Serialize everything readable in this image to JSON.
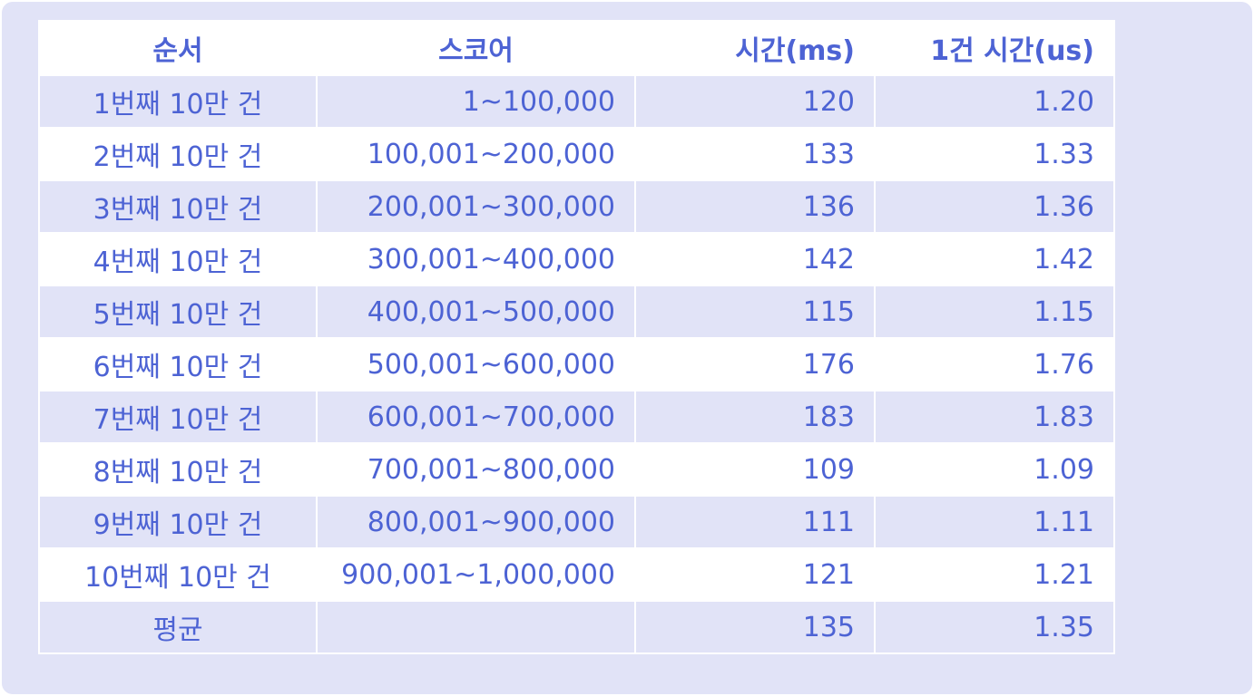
{
  "table": {
    "headers": {
      "order": "순서",
      "score": "스코어",
      "time_ms": "시간(ms)",
      "per_item_us": "1건 시간(us)"
    },
    "rows": [
      {
        "order": "1번째 10만 건",
        "score": "1~100,000",
        "time_ms": "120",
        "per_item_us": "1.20"
      },
      {
        "order": "2번째 10만 건",
        "score": "100,001~200,000",
        "time_ms": "133",
        "per_item_us": "1.33"
      },
      {
        "order": "3번째 10만 건",
        "score": "200,001~300,000",
        "time_ms": "136",
        "per_item_us": "1.36"
      },
      {
        "order": "4번째 10만 건",
        "score": "300,001~400,000",
        "time_ms": "142",
        "per_item_us": "1.42"
      },
      {
        "order": "5번째 10만 건",
        "score": "400,001~500,000",
        "time_ms": "115",
        "per_item_us": "1.15"
      },
      {
        "order": "6번째 10만 건",
        "score": "500,001~600,000",
        "time_ms": "176",
        "per_item_us": "1.76"
      },
      {
        "order": "7번째 10만 건",
        "score": "600,001~700,000",
        "time_ms": "183",
        "per_item_us": "1.83"
      },
      {
        "order": "8번째 10만 건",
        "score": "700,001~800,000",
        "time_ms": "109",
        "per_item_us": "1.09"
      },
      {
        "order": "9번째 10만 건",
        "score": "800,001~900,000",
        "time_ms": "111",
        "per_item_us": "1.11"
      },
      {
        "order": "10번째 10만 건",
        "score": "900,001~1,000,000",
        "time_ms": "121",
        "per_item_us": "1.21"
      },
      {
        "order": "평균",
        "score": "",
        "time_ms": "135",
        "per_item_us": "1.35"
      }
    ]
  },
  "colors": {
    "text": "#4d63d4",
    "stripe": "#e1e3f7",
    "background": "#ffffff"
  }
}
